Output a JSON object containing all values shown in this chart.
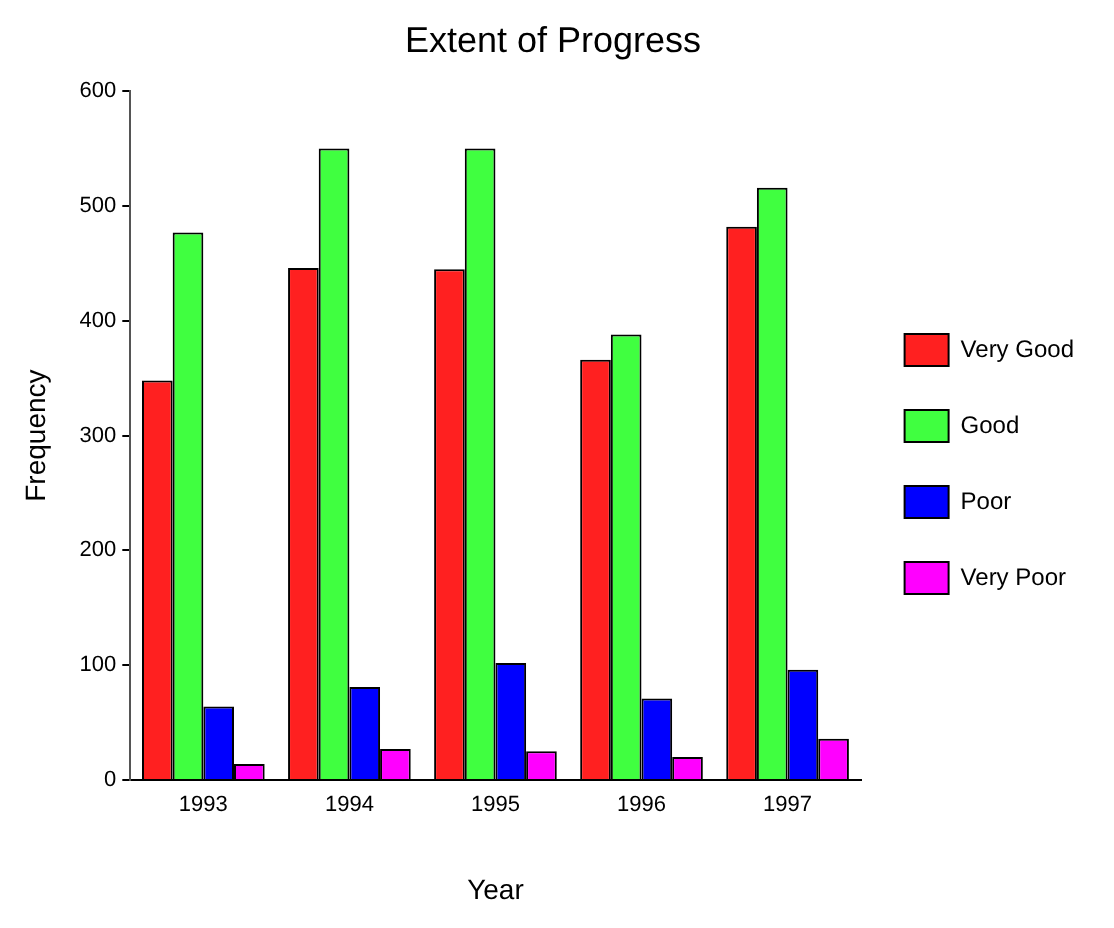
{
  "chart_data": {
    "type": "bar",
    "title": "Extent of Progress",
    "xlabel": "Year",
    "ylabel": "Frequency",
    "categories": [
      "1993",
      "1994",
      "1995",
      "1996",
      "1997"
    ],
    "series": [
      {
        "name": "Very Good",
        "color": "#ff2020",
        "values": [
          348,
          446,
          445,
          366,
          482
        ]
      },
      {
        "name": "Good",
        "color": "#40ff40",
        "values": [
          477,
          550,
          550,
          388,
          516
        ]
      },
      {
        "name": "Poor",
        "color": "#0000ff",
        "values": [
          64,
          81,
          102,
          71,
          96
        ]
      },
      {
        "name": "Very Poor",
        "color": "#ff00ff",
        "values": [
          14,
          27,
          25,
          20,
          36
        ]
      }
    ],
    "ylim": [
      0,
      600
    ],
    "yticks": [
      0,
      100,
      200,
      300,
      400,
      500,
      600
    ],
    "grid": false,
    "legend": "right"
  }
}
